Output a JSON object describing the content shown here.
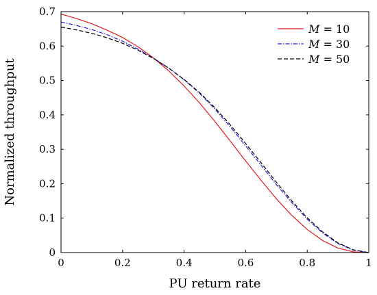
{
  "chart_data": {
    "type": "line",
    "xlabel": "PU return rate",
    "ylabel": "Normalized throughput",
    "xlim": [
      0,
      1
    ],
    "ylim": [
      0,
      0.7
    ],
    "x_ticks": [
      "0",
      "0.2",
      "0.4",
      "0.6",
      "0.8",
      "1"
    ],
    "y_ticks": [
      "0",
      "0.1",
      "0.2",
      "0.3",
      "0.4",
      "0.5",
      "0.6",
      "0.7"
    ],
    "legend_position": "top-right",
    "x": [
      0,
      0.05,
      0.1,
      0.15,
      0.2,
      0.25,
      0.3,
      0.35,
      0.4,
      0.45,
      0.5,
      0.55,
      0.6,
      0.65,
      0.7,
      0.75,
      0.8,
      0.85,
      0.9,
      0.95,
      1.0
    ],
    "series": [
      {
        "name": "M = 10",
        "color": "#e41a1c",
        "dash": "solid",
        "values": [
          0.693,
          0.68,
          0.665,
          0.646,
          0.625,
          0.598,
          0.566,
          0.528,
          0.484,
          0.435,
          0.381,
          0.324,
          0.266,
          0.21,
          0.156,
          0.108,
          0.067,
          0.035,
          0.013,
          0.002,
          0.0
        ]
      },
      {
        "name": "M = 30",
        "color": "#1f1fd6",
        "dash": "dashdot",
        "values": [
          0.67,
          0.66,
          0.648,
          0.633,
          0.614,
          0.591,
          0.565,
          0.536,
          0.502,
          0.463,
          0.417,
          0.365,
          0.31,
          0.254,
          0.197,
          0.145,
          0.097,
          0.057,
          0.026,
          0.007,
          0.0
        ]
      },
      {
        "name": "M = 50",
        "color": "#000000",
        "dash": "dashed",
        "values": [
          0.655,
          0.647,
          0.637,
          0.624,
          0.608,
          0.588,
          0.564,
          0.536,
          0.503,
          0.465,
          0.421,
          0.371,
          0.317,
          0.261,
          0.204,
          0.15,
          0.101,
          0.06,
          0.028,
          0.008,
          0.0
        ]
      }
    ],
    "legend": [
      {
        "var": "M",
        "eq": " = 10"
      },
      {
        "var": "M",
        "eq": " = 30"
      },
      {
        "var": "M",
        "eq": " = 50"
      }
    ]
  }
}
